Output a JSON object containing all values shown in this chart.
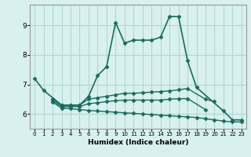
{
  "xlabel": "Humidex (Indice chaleur)",
  "background_color": "#d8f0ee",
  "grid_color": "#b0d8d4",
  "line_color": "#1a6b5e",
  "xlim": [
    -0.5,
    23.5
  ],
  "ylim": [
    5.5,
    9.7
  ],
  "yticks": [
    6,
    7,
    8,
    9
  ],
  "xticks": [
    0,
    1,
    2,
    3,
    4,
    5,
    6,
    7,
    8,
    9,
    10,
    11,
    12,
    13,
    14,
    15,
    16,
    17,
    18,
    19,
    20,
    21,
    22,
    23
  ],
  "series": [
    {
      "x": [
        0,
        1,
        3,
        4,
        5,
        6,
        7,
        8,
        9,
        10,
        11,
        12,
        13,
        14,
        15,
        16,
        17,
        18,
        21,
        22,
        23
      ],
      "y": [
        7.2,
        6.8,
        6.3,
        6.3,
        6.3,
        6.6,
        7.3,
        7.6,
        9.1,
        8.4,
        8.5,
        8.5,
        8.5,
        8.6,
        9.3,
        9.3,
        7.8,
        6.9,
        6.1,
        5.8,
        5.8
      ],
      "marker": "D",
      "markersize": 2.5,
      "linewidth": 1.2
    },
    {
      "x": [
        2,
        3,
        4,
        5,
        6,
        7,
        8,
        9,
        10,
        11,
        12,
        13,
        14,
        15,
        16,
        17,
        19,
        20
      ],
      "y": [
        6.5,
        6.3,
        6.3,
        6.3,
        6.5,
        6.55,
        6.6,
        6.65,
        6.7,
        6.7,
        6.72,
        6.74,
        6.76,
        6.78,
        6.82,
        6.86,
        6.5,
        6.42
      ],
      "marker": "D",
      "markersize": 2.5,
      "linewidth": 1.0
    },
    {
      "x": [
        2,
        3,
        4,
        5,
        6,
        7,
        8,
        9,
        10,
        11,
        12,
        13,
        14,
        15,
        16,
        17,
        19
      ],
      "y": [
        6.45,
        6.25,
        6.25,
        6.25,
        6.35,
        6.38,
        6.42,
        6.45,
        6.47,
        6.47,
        6.47,
        6.47,
        6.47,
        6.5,
        6.52,
        6.52,
        6.15
      ],
      "marker": "D",
      "markersize": 2.5,
      "linewidth": 1.0
    },
    {
      "x": [
        2,
        3,
        4,
        5,
        6,
        7,
        8,
        9,
        10,
        11,
        12,
        13,
        14,
        15,
        16,
        17,
        18,
        19,
        20,
        21,
        22,
        23
      ],
      "y": [
        6.4,
        6.2,
        6.18,
        6.15,
        6.12,
        6.1,
        6.08,
        6.06,
        6.04,
        6.02,
        6.0,
        5.98,
        5.96,
        5.94,
        5.92,
        5.9,
        5.88,
        5.84,
        5.8,
        5.76,
        5.73,
        5.73
      ],
      "marker": "D",
      "markersize": 2.5,
      "linewidth": 1.0
    }
  ]
}
